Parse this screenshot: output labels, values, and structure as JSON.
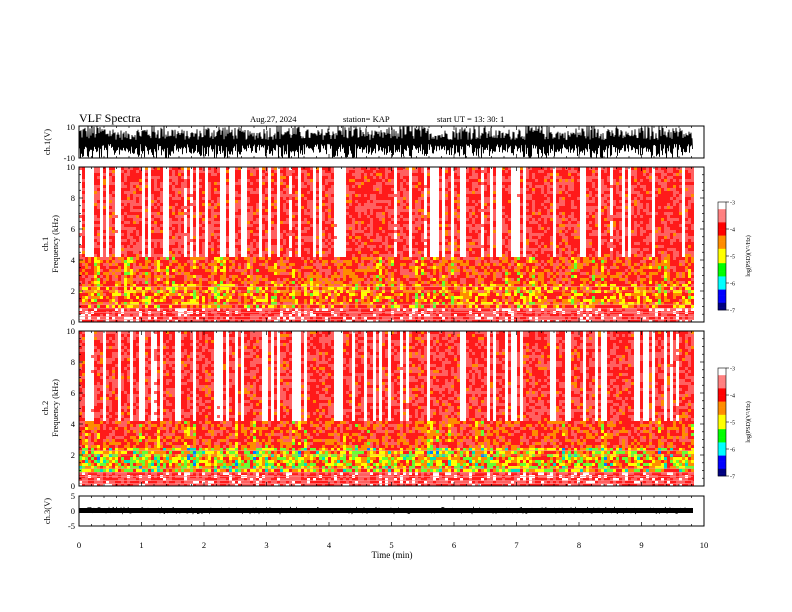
{
  "header": {
    "title": "VLF Spectra",
    "date": "Aug.27, 2024",
    "station": "station= KAP",
    "start": "start  UT =   13: 30: 1"
  },
  "colors": {
    "axis": "#000000",
    "spectrogram_background": "#ffffff",
    "colormap": [
      "#000080",
      "#0000ff",
      "#00ffff",
      "#00ff00",
      "#ffff00",
      "#ff0000",
      "#ff8080",
      "#ffffff"
    ]
  },
  "chart_data": [
    {
      "type": "line",
      "name": "waveform-ch1",
      "ylabel": "ch.1(V)",
      "ylim": [
        -10,
        10
      ],
      "yticks": [
        "10",
        "-10"
      ],
      "xlim": [
        0,
        10
      ],
      "description_series": "dense noisy waveform spanning roughly -10 to 10 V"
    },
    {
      "type": "heatmap",
      "name": "spectrogram-ch1",
      "ylabel_top": "ch.1",
      "ylabel": "Frequency  (kHz)",
      "ylim": [
        0,
        10
      ],
      "yticks": [
        "0",
        "2",
        "4",
        "6",
        "8",
        "10"
      ],
      "xlim": [
        0,
        10
      ],
      "colorbar": {
        "label": "log(PSD)(V²/Hz)",
        "range": [
          -7,
          -3
        ],
        "ticks": [
          "-3",
          "-4",
          "-5",
          "-6",
          "-7"
        ]
      }
    },
    {
      "type": "heatmap",
      "name": "spectrogram-ch2",
      "ylabel_top": "ch.2",
      "ylabel": "Frequency  (kHz)",
      "ylim": [
        0,
        10
      ],
      "yticks": [
        "0",
        "2",
        "4",
        "6",
        "8",
        "10"
      ],
      "xlim": [
        0,
        10
      ],
      "colorbar": {
        "label": "log(PSD)(V²/Hz)",
        "range": [
          -7,
          -3
        ],
        "ticks": [
          "-3",
          "-4",
          "-5",
          "-6",
          "-7"
        ]
      }
    },
    {
      "type": "line",
      "name": "waveform-ch3",
      "ylabel": "ch.3(V)",
      "ylim": [
        -5,
        5
      ],
      "yticks": [
        "5",
        "0",
        "-5"
      ],
      "xlim": [
        0,
        10
      ],
      "xlabel": "Time  (min)",
      "xticks": [
        "0",
        "1",
        "2",
        "3",
        "4",
        "5",
        "6",
        "7",
        "8",
        "9",
        "10"
      ]
    }
  ]
}
